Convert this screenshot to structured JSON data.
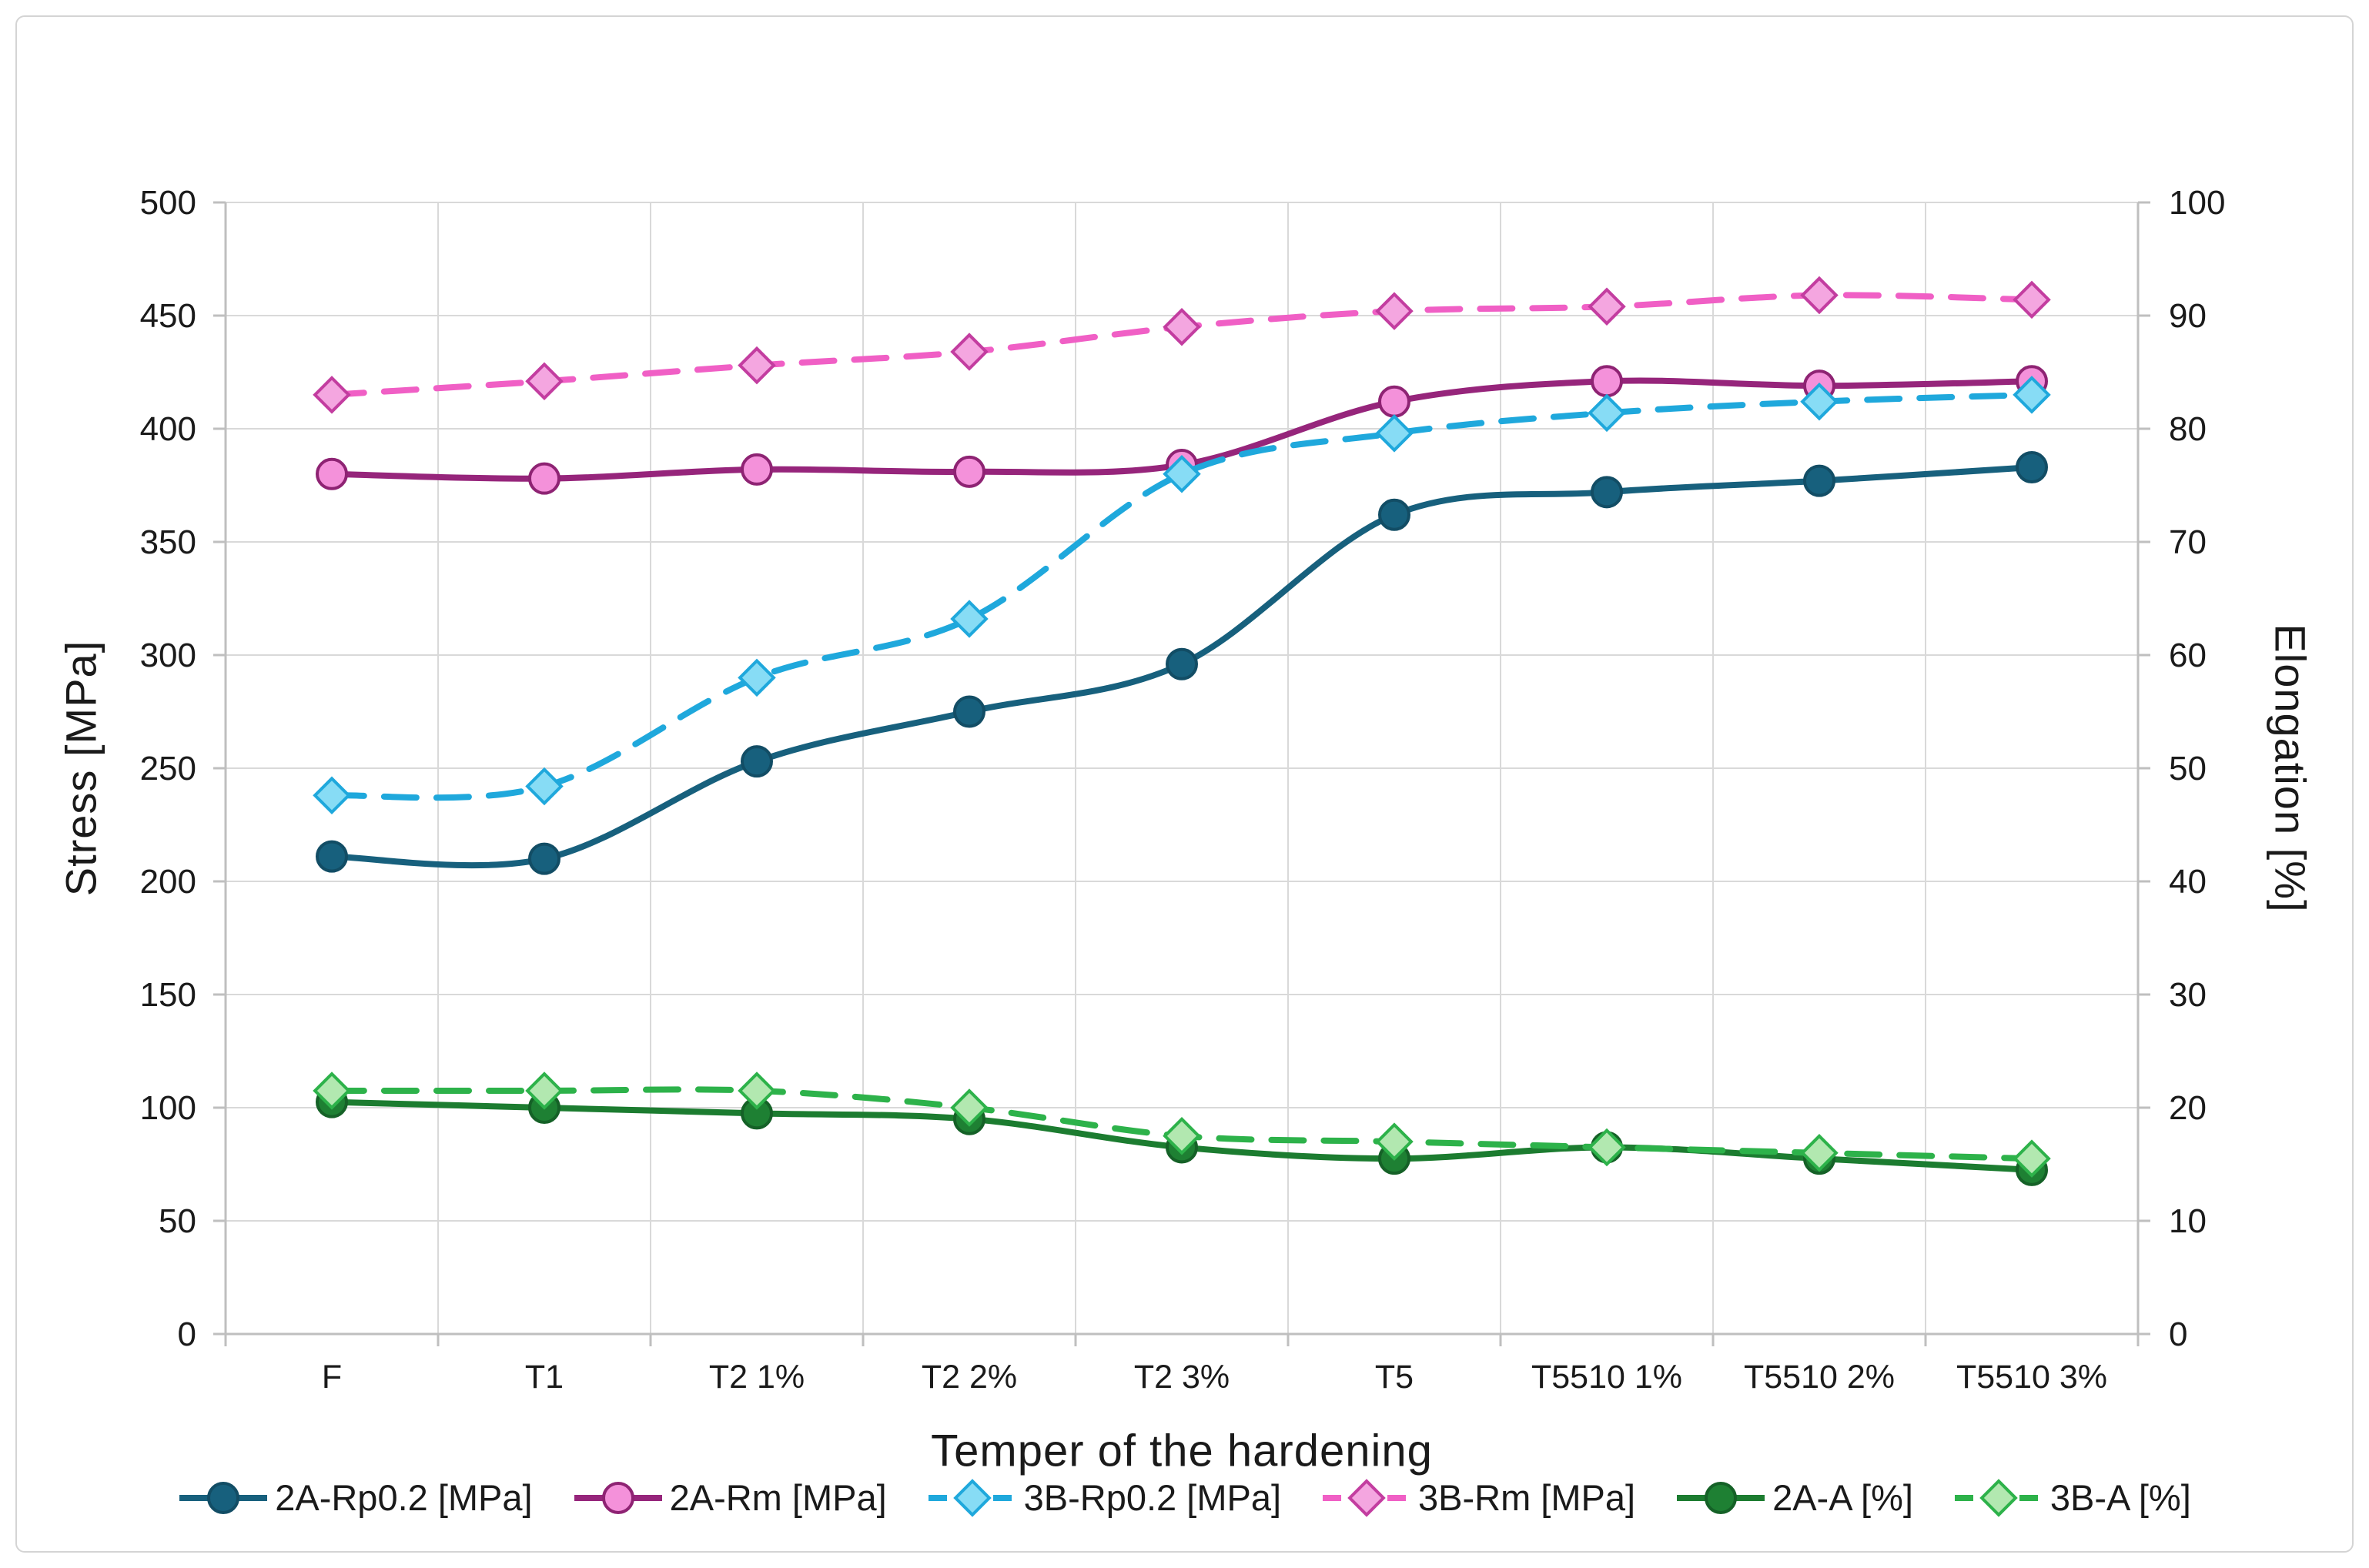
{
  "chart_data": {
    "type": "line",
    "title": "",
    "xlabel": "Temper of the hardening",
    "ylabel_left": "Stress [MPa]",
    "ylabel_right": "Elongation [%]",
    "categories": [
      "F",
      "T1",
      "T2 1%",
      "T2 2%",
      "T2 3%",
      "T5",
      "T5510 1%",
      "T5510 2%",
      "T5510 3%"
    ],
    "left_axis": {
      "label": "Stress [MPa]",
      "min": 0,
      "max": 500,
      "step": 50,
      "ticks": [
        0,
        50,
        100,
        150,
        200,
        250,
        300,
        350,
        400,
        450,
        500
      ]
    },
    "right_axis": {
      "label": "Elongation [%]",
      "min": 0,
      "max": 100,
      "step": 10,
      "ticks": [
        0,
        10,
        20,
        30,
        40,
        50,
        60,
        70,
        80,
        90,
        100
      ]
    },
    "grid": true,
    "legend_position": "bottom",
    "colors": {
      "gridline": "#d9d9d9",
      "axis": "#bfbfbf",
      "text": "#1a1a1a"
    },
    "series": [
      {
        "name": "2A-Rp0.2 [MPa]",
        "axis": "left",
        "line": "solid",
        "marker": "circle",
        "color": "#17607d",
        "marker_fill": "#17607d",
        "marker_stroke": "#124d65",
        "values": [
          211,
          210,
          253,
          275,
          296,
          362,
          372,
          377,
          383
        ]
      },
      {
        "name": "2A-Rm [MPa]",
        "axis": "left",
        "line": "solid",
        "marker": "circle",
        "color": "#96257b",
        "marker_fill": "#f491da",
        "marker_stroke": "#8e2373",
        "values": [
          380,
          378,
          382,
          381,
          384,
          412,
          421,
          419,
          421
        ]
      },
      {
        "name": "3B-Rp0.2 [MPa]",
        "axis": "left",
        "line": "dashed",
        "marker": "diamond",
        "color": "#1fa8dc",
        "marker_fill": "#87dcf5",
        "marker_stroke": "#1fa8dc",
        "values": [
          238,
          242,
          290,
          316,
          380,
          398,
          407,
          412,
          415
        ]
      },
      {
        "name": "3B-Rm [MPa]",
        "axis": "left",
        "line": "dashed",
        "marker": "diamond",
        "color": "#f05fc5",
        "marker_fill": "#f4a6e0",
        "marker_stroke": "#c33da0",
        "values": [
          415,
          421,
          428,
          434,
          445,
          452,
          454,
          459,
          457
        ]
      },
      {
        "name": "2A-A [%]",
        "axis": "right",
        "line": "solid",
        "marker": "circle",
        "color": "#1c7c30",
        "marker_fill": "#1e8033",
        "marker_stroke": "#156127",
        "values": [
          20.5,
          20,
          19.5,
          19,
          16.5,
          15.5,
          16.5,
          15.5,
          14.5
        ]
      },
      {
        "name": "3B-A [%]",
        "axis": "right",
        "line": "dashed",
        "marker": "diamond",
        "color": "#2db24a",
        "marker_fill": "#b2e8b0",
        "marker_stroke": "#2db24a",
        "values": [
          21.5,
          21.5,
          21.5,
          20,
          17.5,
          17,
          16.5,
          16,
          15.5
        ]
      }
    ]
  }
}
